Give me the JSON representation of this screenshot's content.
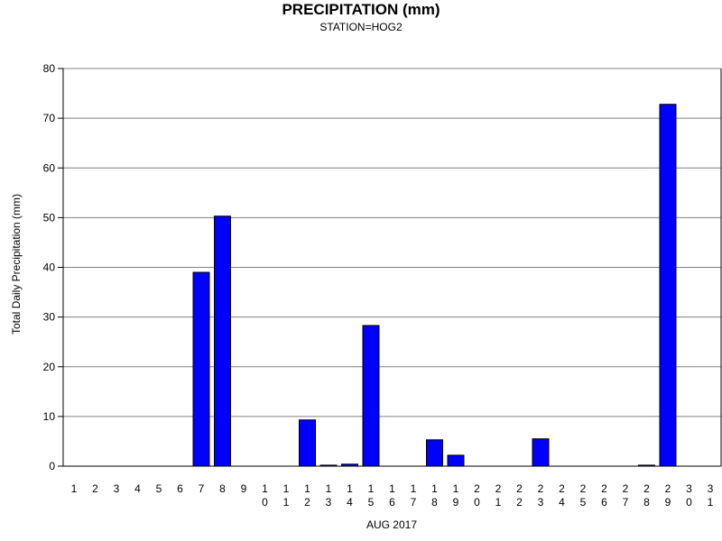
{
  "chart_data": {
    "type": "bar",
    "title": "PRECIPITATION (mm)",
    "subtitle": "STATION=HOG2",
    "xlabel": "AUG 2017",
    "ylabel": "Total Daily Precipitation (mm)",
    "ylim": [
      0,
      80
    ],
    "yticks": [
      0,
      10,
      20,
      30,
      40,
      50,
      60,
      70,
      80
    ],
    "grid": true,
    "categories": [
      "1",
      "2",
      "3",
      "4",
      "5",
      "6",
      "7",
      "8",
      "9",
      "10",
      "11",
      "12",
      "13",
      "14",
      "15",
      "16",
      "17",
      "18",
      "19",
      "20",
      "21",
      "22",
      "23",
      "24",
      "25",
      "26",
      "27",
      "28",
      "29",
      "30",
      "31"
    ],
    "values": [
      0,
      0,
      0,
      0,
      0,
      0,
      39.0,
      50.3,
      0,
      0,
      0,
      9.3,
      0.2,
      0.4,
      28.3,
      0,
      0,
      5.3,
      2.2,
      0,
      0,
      0,
      5.5,
      0,
      0,
      0,
      0,
      0.2,
      72.8,
      0,
      0
    ],
    "bar_color": "#0000ff"
  }
}
